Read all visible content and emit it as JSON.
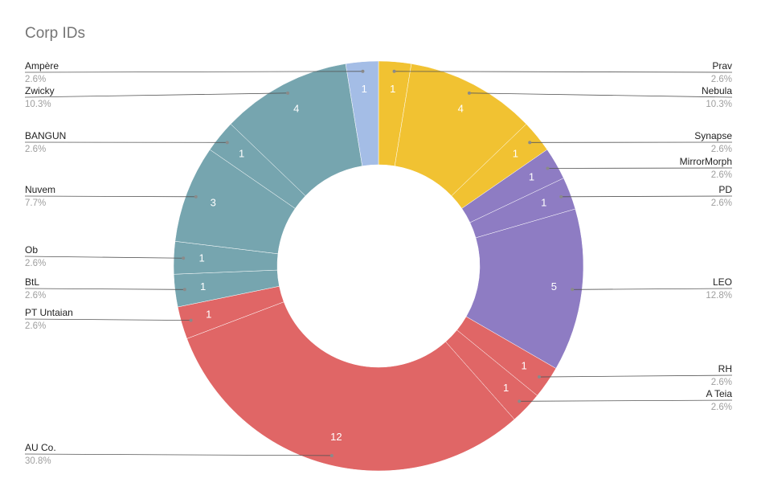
{
  "title": "Corp IDs",
  "chart_data": {
    "type": "pie",
    "donut": true,
    "title": "Corp IDs",
    "labels": [
      "Prav",
      "Nebula",
      "Synapse",
      "MirrorMorph",
      "PD",
      "LEO",
      "RH",
      "A Teia",
      "AU Co.",
      "PT Untaian",
      "BtL",
      "Ob",
      "Nuvem",
      "BANGUN",
      "Zwicky",
      "Ampère"
    ],
    "values": [
      1,
      4,
      1,
      1,
      1,
      5,
      1,
      1,
      12,
      1,
      1,
      1,
      3,
      1,
      4,
      1
    ],
    "percents": [
      "2.6%",
      "10.3%",
      "2.6%",
      "2.6%",
      "2.6%",
      "12.8%",
      "2.6%",
      "2.6%",
      "30.8%",
      "2.6%",
      "2.6%",
      "2.6%",
      "7.7%",
      "2.6%",
      "10.3%",
      "2.6%"
    ],
    "colors": [
      "#f1c232",
      "#f1c232",
      "#f1c232",
      "#8e7cc3",
      "#8e7cc3",
      "#8e7cc3",
      "#e06666",
      "#e06666",
      "#e06666",
      "#e06666",
      "#76a5af",
      "#76a5af",
      "#76a5af",
      "#76a5af",
      "#76a5af",
      "#a4bde6"
    ],
    "legend": "labels-with-leader-lines"
  }
}
